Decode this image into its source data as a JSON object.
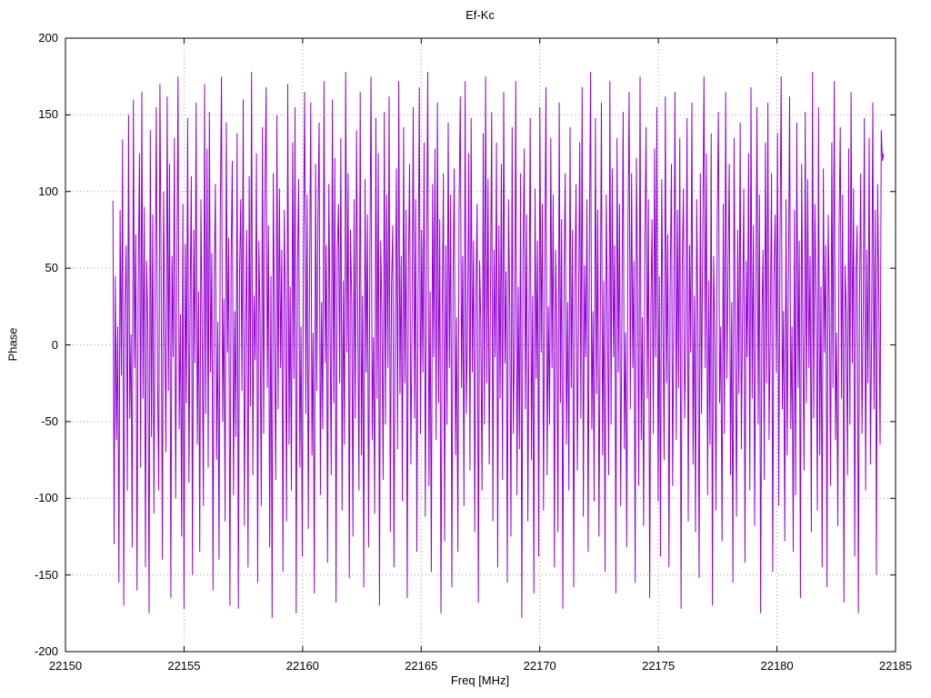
{
  "title": "Ef-Kc",
  "chart_data": {
    "type": "line",
    "title": "Ef-Kc",
    "xlabel": "Freq [MHz]",
    "ylabel": "Phase",
    "xlim": [
      22150,
      22185
    ],
    "ylim": [
      -200,
      200
    ],
    "x_ticks": [
      22150,
      22155,
      22160,
      22165,
      22170,
      22175,
      22180,
      22185
    ],
    "y_ticks": [
      -200,
      -150,
      -100,
      -50,
      0,
      50,
      100,
      150,
      200
    ],
    "grid": true,
    "legend": "none",
    "line_color": "#9400d3",
    "series": [
      {
        "name": "Ef-Kc phase",
        "x_start": 22152.0,
        "x_end": 22184.5,
        "values": [
          94,
          -130,
          45,
          -62,
          12,
          -155,
          88,
          -20,
          134,
          -170,
          23,
          65,
          -95,
          150,
          -48,
          7,
          -132,
          160,
          -15,
          72,
          -160,
          38,
          125,
          -80,
          165,
          -35,
          90,
          -145,
          55,
          10,
          -175,
          140,
          -60,
          85,
          -110,
          30,
          155,
          -25,
          -95,
          170,
          48,
          -140,
          100,
          15,
          -70,
          162,
          -30,
          118,
          -165,
          58,
          -8,
          135,
          -100,
          42,
          175,
          -55,
          20,
          -125,
          92,
          -172,
          66,
          -38,
          148,
          -90,
          25,
          110,
          -150,
          75,
          -12,
          158,
          -65,
          35,
          -135,
          95,
          5,
          -105,
          170,
          -45,
          128,
          -80,
          152,
          -18,
          60,
          -160,
          40,
          105,
          -75,
          15,
          -140,
          85,
          175,
          -50,
          30,
          -115,
          145,
          -5,
          70,
          -170,
          55,
          120,
          -98,
          22,
          -60,
          138,
          -172,
          48,
          95,
          -30,
          160,
          -118,
          8,
          75,
          -145,
          110,
          -40,
          178,
          -85,
          32,
          -10,
          125,
          -155,
          68,
          18,
          -105,
          142,
          -58,
          92,
          168,
          -28,
          78,
          -132,
          45,
          -178,
          112,
          5,
          -88,
          150,
          -42,
          102,
          -15,
          62,
          -148,
          88,
          25,
          -115,
          170,
          -65,
          38,
          -95,
          132,
          -22,
          155,
          -175,
          52,
          108,
          -80,
          12,
          -138,
          72,
          165,
          -45,
          98,
          -120,
          35,
          158,
          -72,
          8,
          -162,
          118,
          -30,
          82,
          145,
          -98,
          28,
          -55,
          172,
          -12,
          65,
          -142,
          105,
          15,
          -85,
          160,
          -38,
          122,
          -168,
          58,
          92,
          -25,
          135,
          -108,
          42,
          -65,
          178,
          -5,
          112,
          -152,
          75,
          28,
          -125,
          95,
          -48,
          140,
          18,
          -95,
          165,
          -72,
          32,
          -158,
          108,
          -18,
          85,
          -132,
          55,
          175,
          -62,
          5,
          -110,
          148,
          -35,
          125,
          -170,
          68,
          22,
          -88,
          152,
          -52,
          98,
          -15,
          162,
          -122,
          38,
          78,
          -145,
          8,
          115,
          -68,
          172,
          -32,
          58,
          -102,
          142,
          -25,
          88,
          -165,
          48,
          118,
          -78,
          12,
          155,
          -48,
          95,
          -135,
          28,
          168,
          -58,
          75,
          -18,
          132,
          -112,
          52,
          178,
          -92,
          35,
          -148,
          105,
          -8,
          128,
          -62,
          158,
          -38,
          82,
          -175,
          22,
          112,
          -128,
          65,
          -52,
          145,
          -15,
          98,
          -158,
          42,
          115,
          -72,
          18,
          -135,
          88,
          162,
          -28,
          58,
          -105,
          172,
          -45,
          8,
          125,
          -82,
          148,
          -18,
          68,
          -122,
          35,
          92,
          -168,
          55,
          15,
          -95,
          138,
          -52,
          175,
          -25,
          108,
          -78,
          28,
          152,
          -115,
          62,
          -8,
          132,
          -145,
          78,
          -35,
          118,
          -88,
          165,
          -12,
          48,
          -155,
          95,
          22,
          -125,
          142,
          -58,
          8,
          172,
          -98,
          38,
          -68,
          112,
          -178,
          58,
          128,
          -42,
          85,
          -115,
          18,
          148,
          -75,
          32,
          -162,
          102,
          -22,
          68,
          -138,
          155,
          -5,
          92,
          -108,
          45,
          168,
          -85,
          25,
          -52,
          135,
          -15,
          98,
          -145,
          62,
          8,
          -122,
          158,
          -38,
          82,
          -172,
          48,
          112,
          -65,
          28,
          -95,
          142,
          -28,
          75,
          -158,
          38,
          105,
          -82,
          15,
          132,
          -48,
          168,
          -112,
          52,
          -8,
          95,
          -135,
          62,
          178,
          -55,
          22,
          -102,
          148,
          -32,
          88,
          -125,
          12,
          158,
          -72,
          42,
          -148,
          98,
          25,
          -85,
          172,
          -52,
          115,
          -8,
          65,
          -162,
          135,
          -18,
          92,
          -105,
          28,
          152,
          -68,
          8,
          -132,
          78,
          165,
          -42,
          112,
          -15,
          55,
          -155,
          122,
          38,
          -92,
          175,
          -62,
          18,
          -118,
          68,
          142,
          -35,
          95,
          -165,
          22,
          82,
          -58,
          128,
          -8,
          155,
          -102,
          45,
          -138,
          108,
          12,
          -75,
          162,
          -25,
          72,
          -145,
          38,
          118,
          -92,
          15,
          165,
          -62,
          88,
          -28,
          135,
          -172,
          52,
          102,
          -48,
          8,
          148,
          -115,
          65,
          -5,
          158,
          -78,
          32,
          -122,
          95,
          18,
          -152,
          112,
          -45,
          68,
          175,
          -15,
          125,
          -98,
          42,
          -65,
          138,
          -170,
          58,
          8,
          -108,
          82,
          152,
          -38,
          12,
          -128,
          92,
          -58,
          165,
          -22,
          48,
          118,
          -85,
          28,
          -155,
          135,
          5,
          -112,
          75,
          -32,
          145,
          -68,
          18,
          102,
          -142,
          55,
          -8,
          125,
          -95,
          168,
          -35,
          78,
          -118,
          32,
          155,
          -52,
          98,
          -175,
          15,
          62,
          -88,
          132,
          -25,
          158,
          -62,
          8,
          112,
          -148,
          42,
          85,
          -18,
          138,
          -105,
          65,
          175,
          -42,
          22,
          -128,
          95,
          -72,
          35,
          162,
          -55,
          12,
          -135,
          88,
          -98,
          145,
          -28,
          68,
          -165,
          118,
          5,
          -82,
          152,
          -38,
          108,
          -15,
          58,
          -122,
          178,
          -48,
          92,
          25,
          -108,
          155,
          -72,
          38,
          -145,
          115,
          -5,
          65,
          -158,
          85,
          18,
          -92,
          132,
          -28,
          172,
          -62,
          8,
          -118,
          75,
          142,
          -35,
          98,
          -168,
          52,
          22,
          -85,
          128,
          -52,
          165,
          -12,
          102,
          -138,
          45,
          78,
          -175,
          32,
          112,
          -58,
          18,
          148,
          -95,
          62,
          -25,
          135,
          -78,
          8,
          158,
          -42,
          88,
          -150,
          105,
          25,
          -65,
          140,
          120,
          125
        ]
      }
    ]
  }
}
